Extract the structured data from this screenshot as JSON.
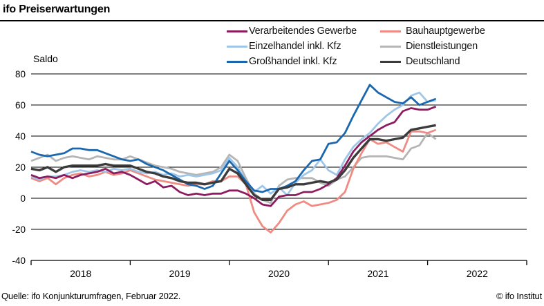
{
  "header": {
    "title": "ifo Preiserwartungen"
  },
  "footer": {
    "source": "Quelle: ifo Konjunkturumfragen, Februar 2022.",
    "credit": "© ifo Institut"
  },
  "legend": {
    "items": [
      {
        "label": "Verarbeitendes Gewerbe",
        "color": "#8d1b60"
      },
      {
        "label": "Bauhauptgewerbe",
        "color": "#ef8b82"
      },
      {
        "label": "Einzelhandel inkl. Kfz",
        "color": "#9fc6e7"
      },
      {
        "label": "Dienstleistungen",
        "color": "#b5b5b5"
      },
      {
        "label": "Großhandel inkl. Kfz",
        "color": "#1b67ad"
      },
      {
        "label": "Deutschland",
        "color": "#3b3b3b"
      }
    ]
  },
  "chart_data": {
    "type": "line",
    "unit_label": "Saldo",
    "ylim": [
      -40,
      80
    ],
    "yticks": [
      80,
      60,
      40,
      20,
      0,
      -20,
      -40
    ],
    "xticklabels": [
      "2018",
      "2019",
      "2020",
      "2021",
      "2022"
    ],
    "grid": true,
    "legend_position": "top-right",
    "x": [
      "2018-01",
      "2018-02",
      "2018-03",
      "2018-04",
      "2018-05",
      "2018-06",
      "2018-07",
      "2018-08",
      "2018-09",
      "2018-10",
      "2018-11",
      "2018-12",
      "2019-01",
      "2019-02",
      "2019-03",
      "2019-04",
      "2019-05",
      "2019-06",
      "2019-07",
      "2019-08",
      "2019-09",
      "2019-10",
      "2019-11",
      "2019-12",
      "2020-01",
      "2020-02",
      "2020-03",
      "2020-04",
      "2020-05",
      "2020-06",
      "2020-07",
      "2020-08",
      "2020-09",
      "2020-10",
      "2020-11",
      "2020-12",
      "2021-01",
      "2021-02",
      "2021-03",
      "2021-04",
      "2021-05",
      "2021-06",
      "2021-07",
      "2021-08",
      "2021-09",
      "2021-10",
      "2021-11",
      "2021-12",
      "2022-01",
      "2022-02"
    ],
    "series": [
      {
        "name": "Dienstleistungen",
        "color": "#b5b5b5",
        "width": 2.8,
        "values": [
          24,
          26,
          28,
          24,
          26,
          27,
          26,
          25,
          27,
          26,
          25,
          25,
          27,
          25,
          23,
          21,
          20,
          19,
          17,
          16,
          15,
          16,
          17,
          20,
          28,
          24,
          13,
          3,
          -1,
          -3,
          8,
          12,
          13,
          13,
          13,
          10,
          8,
          12,
          14,
          20,
          26,
          27,
          27,
          27,
          26,
          25,
          32,
          34,
          42,
          38
        ]
      },
      {
        "name": "Bauhauptgewerbe",
        "color": "#ef8b82",
        "width": 2.8,
        "values": [
          13,
          11,
          13,
          9,
          13,
          15,
          16,
          14,
          15,
          17,
          15,
          16,
          18,
          16,
          14,
          12,
          11,
          10,
          9,
          8,
          9,
          9,
          11,
          11,
          14,
          14,
          9,
          -9,
          -18,
          -22,
          -16,
          -8,
          -4,
          -2,
          -5,
          -4,
          -3,
          -1,
          4,
          19,
          29,
          38,
          35,
          36,
          33,
          30,
          43,
          43,
          42,
          44
        ]
      },
      {
        "name": "Einzelhandel inkl. Kfz",
        "color": "#9fc6e7",
        "width": 2.8,
        "values": [
          14,
          12,
          14,
          14,
          15,
          17,
          18,
          17,
          18,
          17,
          19,
          18,
          19,
          17,
          16,
          17,
          15,
          16,
          14,
          15,
          14,
          15,
          16,
          18,
          26,
          20,
          11,
          4,
          8,
          3,
          7,
          2,
          10,
          15,
          18,
          25,
          18,
          15,
          25,
          33,
          38,
          42,
          48,
          53,
          57,
          60,
          66,
          68,
          62,
          63
        ]
      },
      {
        "name": "Verarbeitendes Gewerbe",
        "color": "#8d1b60",
        "width": 2.8,
        "values": [
          15,
          13,
          14,
          13,
          15,
          13,
          15,
          16,
          17,
          19,
          16,
          17,
          15,
          12,
          9,
          11,
          7,
          8,
          4,
          2,
          3,
          2,
          3,
          3,
          5,
          5,
          3,
          0,
          -4,
          -5,
          1,
          2,
          2,
          4,
          4,
          6,
          9,
          13,
          21,
          30,
          36,
          40,
          44,
          47,
          49,
          56,
          58,
          57,
          57,
          59
        ]
      },
      {
        "name": "Großhandel inkl. Kfz",
        "color": "#1b67ad",
        "width": 2.8,
        "values": [
          30,
          28,
          27,
          28,
          29,
          32,
          32,
          31,
          31,
          29,
          27,
          25,
          24,
          25,
          22,
          20,
          18,
          15,
          12,
          9,
          8,
          6,
          8,
          16,
          24,
          18,
          11,
          5,
          4,
          6,
          6,
          8,
          11,
          18,
          24,
          25,
          35,
          36,
          42,
          53,
          63,
          73,
          68,
          65,
          62,
          61,
          65,
          60,
          62,
          64
        ]
      },
      {
        "name": "Deutschland",
        "color": "#3b3b3b",
        "width": 3.4,
        "values": [
          19,
          18,
          20,
          17,
          20,
          21,
          21,
          21,
          21,
          22,
          21,
          21,
          21,
          19,
          17,
          16,
          14,
          13,
          11,
          10,
          10,
          9,
          10,
          11,
          19,
          16,
          9,
          2,
          -1,
          -1,
          6,
          7,
          9,
          9,
          10,
          11,
          10,
          12,
          18,
          26,
          32,
          38,
          38,
          37,
          38,
          39,
          44,
          45,
          46,
          47
        ]
      }
    ]
  }
}
